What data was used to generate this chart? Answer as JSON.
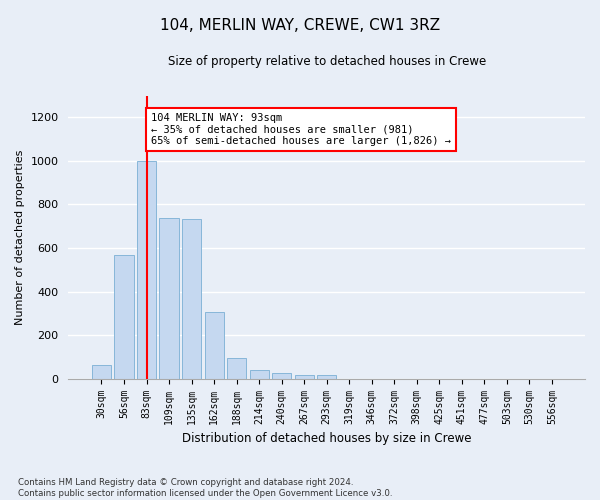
{
  "title": "104, MERLIN WAY, CREWE, CW1 3RZ",
  "subtitle": "Size of property relative to detached houses in Crewe",
  "xlabel": "Distribution of detached houses by size in Crewe",
  "ylabel": "Number of detached properties",
  "bar_color": "#c5d8f0",
  "bar_edge_color": "#7aafd4",
  "vline_color": "red",
  "vline_x": 2,
  "annotation_text": "104 MERLIN WAY: 93sqm\n← 35% of detached houses are smaller (981)\n65% of semi-detached houses are larger (1,826) →",
  "annotation_box_color": "white",
  "annotation_box_edge": "red",
  "categories": [
    "30sqm",
    "56sqm",
    "83sqm",
    "109sqm",
    "135sqm",
    "162sqm",
    "188sqm",
    "214sqm",
    "240sqm",
    "267sqm",
    "293sqm",
    "319sqm",
    "346sqm",
    "372sqm",
    "398sqm",
    "425sqm",
    "451sqm",
    "477sqm",
    "503sqm",
    "530sqm",
    "556sqm"
  ],
  "values": [
    65,
    570,
    1000,
    740,
    735,
    305,
    95,
    38,
    25,
    15,
    15,
    0,
    0,
    0,
    0,
    0,
    0,
    0,
    0,
    0,
    0
  ],
  "ylim": [
    0,
    1300
  ],
  "yticks": [
    0,
    200,
    400,
    600,
    800,
    1000,
    1200
  ],
  "footer": "Contains HM Land Registry data © Crown copyright and database right 2024.\nContains public sector information licensed under the Open Government Licence v3.0.",
  "bg_color": "#e8eef7",
  "plot_bg_color": "#e8eef7"
}
